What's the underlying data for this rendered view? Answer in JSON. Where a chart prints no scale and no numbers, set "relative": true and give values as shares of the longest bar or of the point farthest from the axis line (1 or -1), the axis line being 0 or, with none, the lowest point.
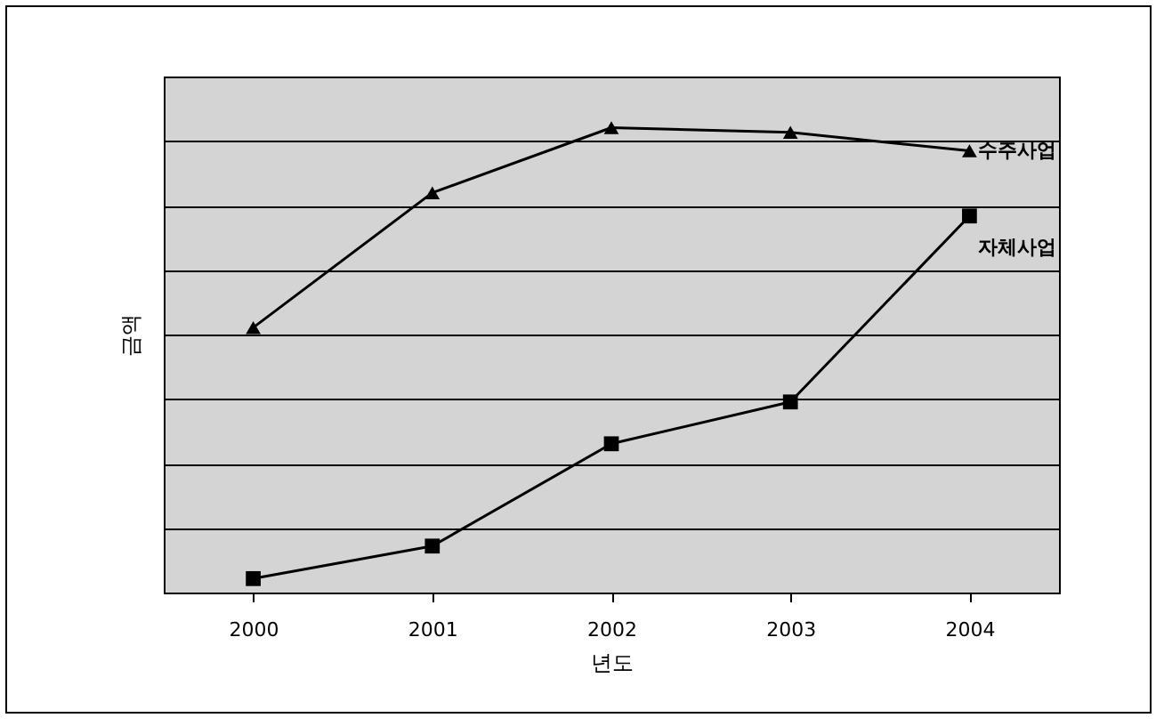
{
  "chart_data": {
    "type": "line",
    "relative": true,
    "xlabel": "년도",
    "ylabel": "금액",
    "categories": [
      "2000",
      "2001",
      "2002",
      "2003",
      "2004"
    ],
    "grid": "y",
    "legend": false,
    "series": [
      {
        "name": "수주사업",
        "color": "#000000",
        "marker": "triangle",
        "values": [
          0.57,
          0.86,
          1,
          0.99,
          0.95
        ]
      },
      {
        "name": "자체사업",
        "color": "#000000",
        "marker": "square",
        "values": [
          0.03,
          0.1,
          0.32,
          0.41,
          0.81
        ]
      }
    ]
  }
}
